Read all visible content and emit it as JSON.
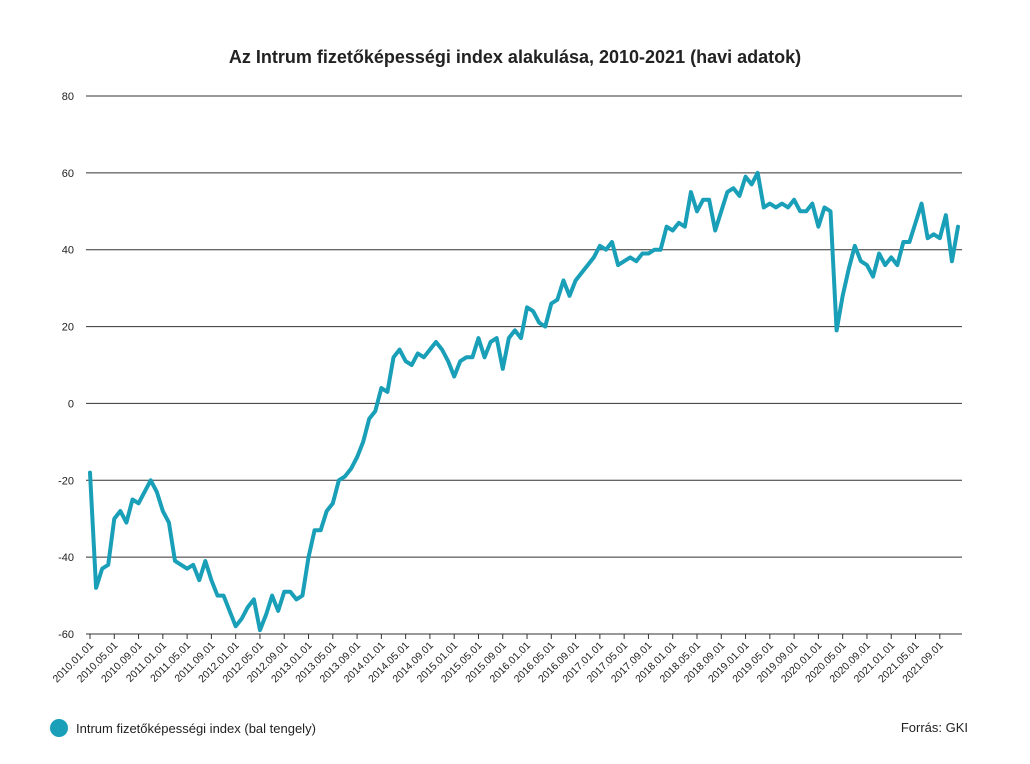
{
  "title": "Az Intrum fizetőképességi index alakulása, 2010-2021 (havi adatok)",
  "legend_label": "Intrum fizetőképességi index (bal tengely)",
  "source": "Forrás: GKI",
  "colors": {
    "line": "#1a9fb8",
    "grid": "#333333"
  },
  "chart_data": {
    "type": "line",
    "title": "Az Intrum fizetőképességi index alakulása, 2010-2021 (havi adatok)",
    "ylim": [
      -60,
      80
    ],
    "yticks": [
      "80",
      "60",
      "40",
      "20",
      "0",
      "-20",
      "-40",
      "-60"
    ],
    "yticks_values": [
      80,
      60,
      40,
      20,
      0,
      -20,
      -40,
      -60
    ],
    "grid": true,
    "legend_position": "bottom-left",
    "x_tick_labels": [
      "2010.01.01",
      "2010.05.01",
      "2010.09.01",
      "2011.01.01",
      "2011.05.01",
      "2011.09.01",
      "2012.01.01",
      "2012.05.01",
      "2012.09.01",
      "2013.01.01",
      "2013.05.01",
      "2013.09.01",
      "2014.01.01",
      "2014.05.01",
      "2014.09.01",
      "2015.01.01",
      "2015.05.01",
      "2015.09.01",
      "2016.01.01",
      "2016.05.01",
      "2016.09.01",
      "2017.01.01",
      "2017.05.01",
      "2017.09.01",
      "2018.01.01",
      "2018.05.01",
      "2018.09.01",
      "2019.01.01",
      "2019.05.01",
      "2019.09.01",
      "2020.01.01",
      "2020.05.01",
      "2020.09.01",
      "2021.01.01",
      "2021.05.01",
      "2021.09.01"
    ],
    "series": [
      {
        "name": "Intrum fizetőképességi index (bal tengely)",
        "start": "2010-01",
        "frequency": "monthly",
        "values": [
          -18,
          -48,
          -43,
          -42,
          -30,
          -28,
          -31,
          -25,
          -26,
          -23,
          -20,
          -23,
          -28,
          -31,
          -41,
          -42,
          -43,
          -42,
          -46,
          -41,
          -46,
          -50,
          -50,
          -54,
          -58,
          -56,
          -53,
          -51,
          -59,
          -55,
          -50,
          -54,
          -49,
          -49,
          -51,
          -50,
          -40,
          -33,
          -33,
          -28,
          -26,
          -20,
          -19,
          -17,
          -14,
          -10,
          -4,
          -2,
          4,
          3,
          12,
          14,
          11,
          10,
          13,
          12,
          14,
          16,
          14,
          11,
          7,
          11,
          12,
          12,
          17,
          12,
          16,
          17,
          9,
          17,
          19,
          17,
          25,
          24,
          21,
          20,
          26,
          27,
          32,
          28,
          32,
          34,
          36,
          38,
          41,
          40,
          42,
          36,
          37,
          38,
          37,
          39,
          39,
          40,
          40,
          46,
          45,
          47,
          46,
          55,
          50,
          53,
          53,
          45,
          50,
          55,
          56,
          54,
          59,
          57,
          60,
          51,
          52,
          51,
          52,
          51,
          53,
          50,
          50,
          52,
          46,
          51,
          50,
          19,
          28,
          35,
          41,
          37,
          36,
          33,
          39,
          36,
          38,
          36,
          42,
          42,
          47,
          52,
          43,
          44,
          43,
          49,
          37,
          46
        ]
      }
    ]
  }
}
